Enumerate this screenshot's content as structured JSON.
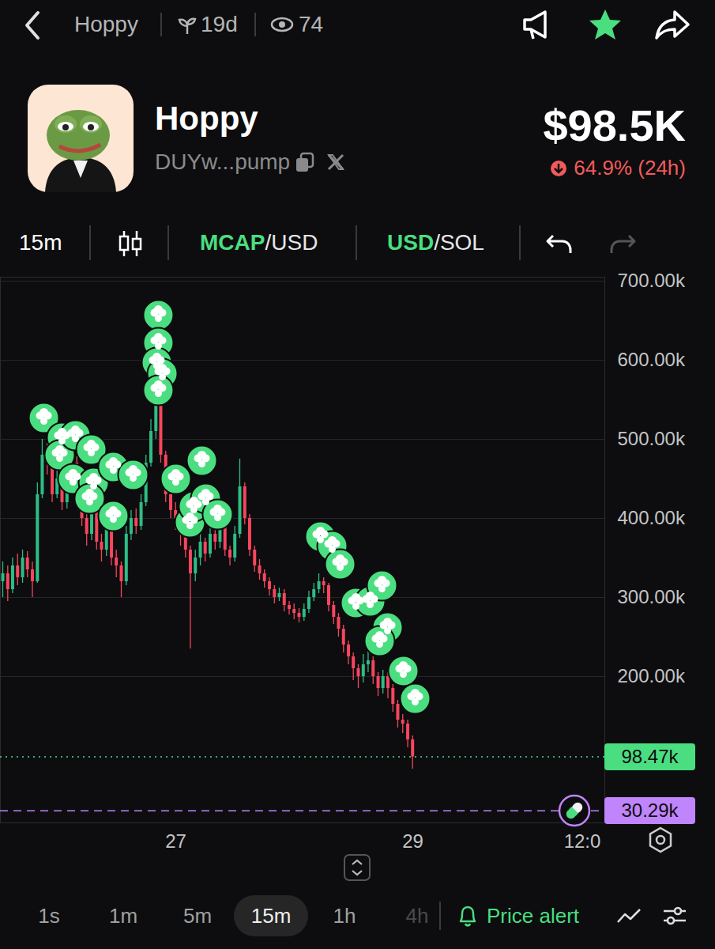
{
  "top_bar": {
    "name": "Hoppy",
    "age": "19d",
    "viewers": "74"
  },
  "token": {
    "name": "Hoppy",
    "address": "DUYw...pump",
    "market_cap": "$98.5K",
    "change": "64.9% (24h)"
  },
  "toolbar": {
    "interval": "15m",
    "mcap_toggle": [
      "MCAP",
      "/USD"
    ],
    "currency_toggle": [
      "USD",
      "/SOL"
    ]
  },
  "chart_data": {
    "type": "candlestick",
    "x": [
      25.54,
      25.582,
      25.623,
      25.665,
      25.707,
      25.748,
      25.79,
      25.832,
      25.873,
      25.915,
      25.957,
      25.998,
      26.04,
      26.082,
      26.123,
      26.165,
      26.207,
      26.248,
      26.29,
      26.332,
      26.373,
      26.415,
      26.457,
      26.498,
      26.54,
      26.582,
      26.623,
      26.665,
      26.707,
      26.748,
      26.79,
      26.832,
      26.873,
      26.915,
      26.957,
      26.998,
      27.04,
      27.082,
      27.123,
      27.165,
      27.207,
      27.248,
      27.29,
      27.332,
      27.373,
      27.415,
      27.457,
      27.498,
      27.54,
      27.582,
      27.623,
      27.665,
      27.707,
      27.748,
      27.79,
      27.832,
      27.873,
      27.915,
      27.957,
      27.998,
      28.04,
      28.082,
      28.123,
      28.165,
      28.207,
      28.248,
      28.29,
      28.332,
      28.373,
      28.415,
      28.457,
      28.498,
      28.54,
      28.582,
      28.623,
      28.665,
      28.707,
      28.748,
      28.79,
      28.832,
      28.873,
      28.915,
      28.957,
      28.998
    ],
    "open": [
      320000,
      330000,
      310000,
      340000,
      325000,
      350000,
      335000,
      320000,
      430000,
      480000,
      470000,
      430000,
      450000,
      420000,
      440000,
      470000,
      430000,
      400000,
      380000,
      410000,
      370000,
      360000,
      390000,
      350000,
      340000,
      320000,
      380000,
      400000,
      390000,
      420000,
      470000,
      510000,
      545000,
      480000,
      430000,
      410000,
      400000,
      380000,
      360000,
      330000,
      350000,
      370000,
      355000,
      380000,
      370000,
      390000,
      360000,
      350000,
      380000,
      440000,
      400000,
      360000,
      340000,
      330000,
      320000,
      310000,
      300000,
      305000,
      290000,
      285000,
      280000,
      275000,
      285000,
      300000,
      310000,
      320000,
      315000,
      290000,
      275000,
      260000,
      240000,
      225000,
      210000,
      200000,
      215000,
      220000,
      200000,
      185000,
      200000,
      185000,
      165000,
      145000,
      140000,
      120000
    ],
    "high": [
      345000,
      340000,
      350000,
      355000,
      360000,
      358000,
      345000,
      445000,
      500000,
      495000,
      478000,
      465000,
      458000,
      455000,
      485000,
      478000,
      440000,
      410000,
      420000,
      415000,
      380000,
      400000,
      395000,
      360000,
      345000,
      390000,
      410000,
      412000,
      430000,
      480000,
      525000,
      560000,
      550000,
      485000,
      440000,
      420000,
      405000,
      390000,
      365000,
      360000,
      380000,
      375000,
      390000,
      385000,
      400000,
      395000,
      365000,
      390000,
      475000,
      445000,
      405000,
      365000,
      348000,
      335000,
      325000,
      315000,
      312000,
      310000,
      295000,
      292000,
      286000,
      292000,
      308000,
      318000,
      330000,
      325000,
      318000,
      295000,
      280000,
      265000,
      245000,
      230000,
      215000,
      228000,
      232000,
      225000,
      205000,
      208000,
      205000,
      190000,
      170000,
      152000,
      145000,
      125000
    ],
    "low": [
      300000,
      295000,
      305000,
      315000,
      318000,
      325000,
      300000,
      318000,
      425000,
      455000,
      420000,
      425000,
      410000,
      412000,
      435000,
      420000,
      390000,
      365000,
      372000,
      360000,
      345000,
      352000,
      340000,
      325000,
      300000,
      315000,
      372000,
      380000,
      385000,
      415000,
      465000,
      500000,
      470000,
      420000,
      400000,
      385000,
      365000,
      350000,
      235000,
      320000,
      340000,
      345000,
      350000,
      360000,
      362000,
      352000,
      340000,
      345000,
      375000,
      392000,
      352000,
      332000,
      322000,
      312000,
      302000,
      292000,
      295000,
      282000,
      278000,
      272000,
      268000,
      270000,
      280000,
      295000,
      305000,
      305000,
      282000,
      266000,
      250000,
      230000,
      215000,
      195000,
      185000,
      192000,
      205000,
      190000,
      175000,
      178000,
      172000,
      155000,
      135000,
      128000,
      110000,
      83000
    ],
    "close": [
      330000,
      310000,
      340000,
      325000,
      350000,
      335000,
      320000,
      430000,
      480000,
      470000,
      430000,
      450000,
      420000,
      440000,
      470000,
      430000,
      400000,
      380000,
      410000,
      370000,
      360000,
      390000,
      350000,
      340000,
      320000,
      380000,
      400000,
      390000,
      420000,
      470000,
      510000,
      545000,
      480000,
      430000,
      410000,
      400000,
      380000,
      360000,
      330000,
      350000,
      370000,
      355000,
      380000,
      370000,
      390000,
      360000,
      350000,
      380000,
      440000,
      400000,
      360000,
      340000,
      330000,
      320000,
      310000,
      300000,
      305000,
      290000,
      285000,
      280000,
      275000,
      285000,
      300000,
      310000,
      320000,
      315000,
      290000,
      275000,
      260000,
      240000,
      225000,
      210000,
      200000,
      215000,
      220000,
      200000,
      185000,
      200000,
      185000,
      165000,
      145000,
      140000,
      120000,
      98470
    ],
    "markers": {
      "color": "#4ade80",
      "x": [
        25.887,
        26.04,
        26.02,
        26.153,
        26.287,
        26.133,
        26.307,
        26.273,
        26.473,
        26.64,
        26.473,
        26.853,
        26.853,
        26.84,
        26.887,
        26.853,
        27.0,
        27.22,
        27.12,
        27.153,
        27.253,
        27.353,
        28.22,
        28.32,
        28.387,
        28.52,
        28.64,
        28.74,
        28.787,
        28.72,
        28.92,
        29.02
      ],
      "y": [
        527000,
        502000,
        480000,
        505000,
        487000,
        450000,
        445000,
        425000,
        465000,
        455000,
        403000,
        657000,
        622000,
        597000,
        583000,
        562000,
        450000,
        473000,
        395000,
        415000,
        425000,
        405000,
        377000,
        365000,
        342000,
        293000,
        295000,
        315000,
        262000,
        245000,
        207000,
        172000
      ]
    },
    "lines": [
      {
        "value": 98470,
        "label": "98.47k",
        "color": "#4ade80",
        "line_style": "dotted"
      },
      {
        "value": 30290,
        "label": "30.29k",
        "color": "#c084fc",
        "line_style": "dashed"
      }
    ],
    "xlim": [
      25.52,
      30.62
    ],
    "xticks": [
      27,
      29,
      {
        "value": 30.43,
        "label": "12:0"
      }
    ],
    "ylim": [
      15000,
      705000
    ],
    "yticks": [
      {
        "value": 200000,
        "label": "200.00k"
      },
      {
        "value": 300000,
        "label": "300.00k"
      },
      {
        "value": 400000,
        "label": "400.00k"
      },
      {
        "value": 500000,
        "label": "500.00k"
      },
      {
        "value": 600000,
        "label": "600.00k"
      },
      {
        "value": 700000,
        "label": "700.00k"
      }
    ],
    "grid": true
  },
  "footer": {
    "intervals": [
      "1s",
      "1m",
      "5m",
      "15m",
      "1h",
      "4h"
    ],
    "selected": "15m",
    "price_alert": "Price alert"
  }
}
